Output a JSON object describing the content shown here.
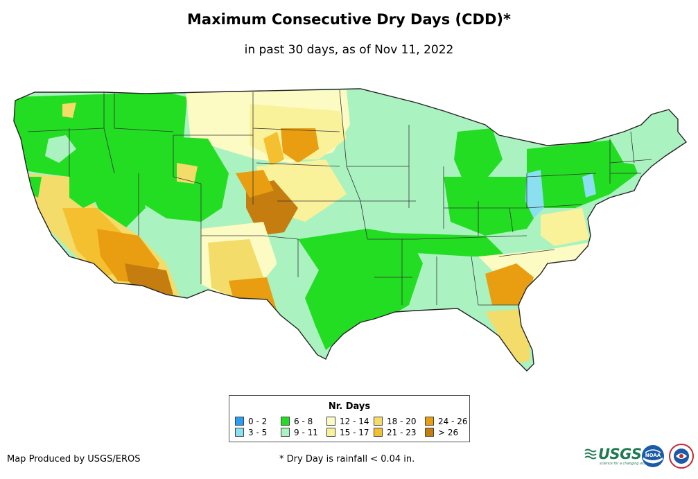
{
  "title": "Maximum Consecutive Dry Days (CDD)*",
  "subtitle": "in past 30 days, as of Nov 11, 2022",
  "legend": {
    "title": "Nr. Days",
    "items": [
      {
        "label": "0 - 2",
        "color": "#2a9df4"
      },
      {
        "label": "3 - 5",
        "color": "#8ae0f0"
      },
      {
        "label": "6 - 8",
        "color": "#22dd22"
      },
      {
        "label": "9 - 11",
        "color": "#aaf2c0"
      },
      {
        "label": "12 - 14",
        "color": "#fdfbc4"
      },
      {
        "label": "15 - 17",
        "color": "#faf29a"
      },
      {
        "label": "18 - 20",
        "color": "#f3dc6a"
      },
      {
        "label": "21 - 23",
        "color": "#f5c030"
      },
      {
        "label": "24 - 26",
        "color": "#e89e10"
      },
      {
        "label": "> 26",
        "color": "#c57d10"
      }
    ]
  },
  "credit": "Map Produced by USGS/EROS",
  "footnote": "* Dry Day is rainfall < 0.04 in.",
  "logos": {
    "usgs": "USGS",
    "usgs_tagline": "science for a changing world",
    "noaa": "NOAA"
  },
  "colors": {
    "outline": "#222222",
    "state_line": "#333333"
  }
}
